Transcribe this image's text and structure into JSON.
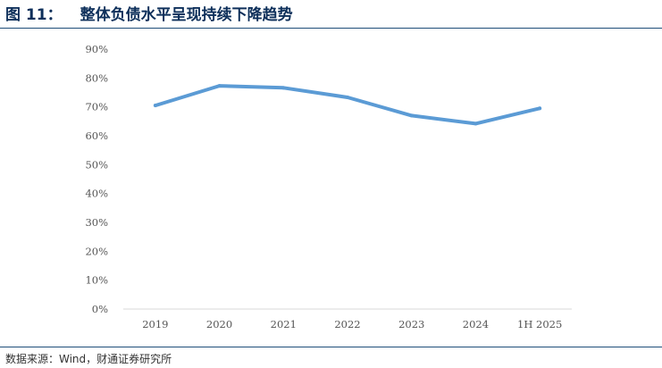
{
  "figure": {
    "number": "图 11：",
    "title": "整体负债水平呈现持续下降趋势",
    "source": "数据来源：Wind，财通证券研究所"
  },
  "colors": {
    "line": "#5b9bd5",
    "title": "#0d2f5a",
    "rule": "#1f4e79",
    "axis": "#d9d9d9"
  },
  "chart_data": {
    "type": "line",
    "categories": [
      "2019",
      "2020",
      "2021",
      "2022",
      "2023",
      "2024",
      "1H 2025"
    ],
    "series": [
      {
        "values": [
          70.5,
          77.3,
          76.6,
          73.3,
          67.0,
          64.2,
          69.5
        ]
      }
    ],
    "ylim": [
      0,
      90
    ],
    "yticks": [
      "0%",
      "10%",
      "20%",
      "30%",
      "40%",
      "50%",
      "60%",
      "70%",
      "80%",
      "90%"
    ],
    "ytick_values": [
      0,
      10,
      20,
      30,
      40,
      50,
      60,
      70,
      80,
      90
    ],
    "grid": false,
    "legend": "none"
  }
}
